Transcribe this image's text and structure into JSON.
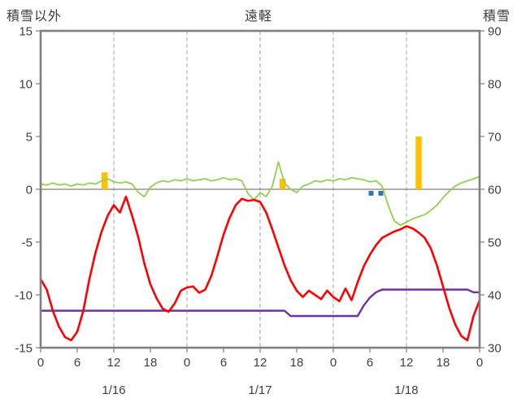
{
  "header": {
    "left_axis_title": "積雪以外",
    "title": "遠軽",
    "right_axis_title": "積雪"
  },
  "chart_data": {
    "type": "line",
    "title": "遠軽",
    "x_hours_span": 72,
    "x_step_hours": 1,
    "x_tick_interval_hours": 6,
    "x_tick_labels": [
      "0",
      "6",
      "12",
      "18",
      "0",
      "6",
      "12",
      "18",
      "0",
      "6",
      "12",
      "18",
      "0"
    ],
    "date_labels": [
      "1/16",
      "1/17",
      "1/18"
    ],
    "left_axis": {
      "title": "積雪以外",
      "min": -15,
      "max": 15,
      "tick": 5,
      "labels": [
        "15",
        "10",
        "5",
        "0",
        "-5",
        "-10",
        "-15"
      ]
    },
    "right_axis": {
      "title": "積雪",
      "min": 30,
      "max": 90,
      "tick": 10,
      "labels": [
        "90",
        "80",
        "70",
        "60",
        "50",
        "40",
        "30"
      ]
    },
    "gridlines": {
      "vertical_dashed_at_hours": [
        12,
        24,
        36,
        48,
        60
      ],
      "horizontal_zero_line": true
    },
    "colors": {
      "border": "#808080",
      "grid": "#A6A6A6",
      "text": "#404040"
    },
    "series": [
      {
        "name": "yellow-bars",
        "kind": "bar",
        "axis": "left",
        "color": "#FFC000",
        "bar_width_hours": 1,
        "bars": [
          {
            "hour": 10.5,
            "from": 0,
            "to": 1.6
          },
          {
            "hour": 39.7,
            "from": 0,
            "to": 1.0
          },
          {
            "hour": 62.0,
            "from": 0,
            "to": 5.0
          }
        ]
      },
      {
        "name": "blue-marks",
        "kind": "bar",
        "axis": "left",
        "color": "#2E75B6",
        "bar_width_hours": 0.8,
        "bars": [
          {
            "hour": 54.2,
            "from": -0.15,
            "to": -0.6
          },
          {
            "hour": 55.8,
            "from": -0.15,
            "to": -0.6
          }
        ]
      },
      {
        "name": "purple-line",
        "kind": "line",
        "axis": "right",
        "color": "#7030A0",
        "width": 2.4,
        "values": [
          37,
          37,
          37,
          37,
          37,
          37,
          37,
          37,
          37,
          37,
          37,
          37,
          37,
          37,
          37,
          37,
          37,
          37,
          37,
          37,
          37,
          37,
          37,
          37,
          37,
          37,
          37,
          37,
          37,
          37,
          37,
          37,
          37,
          37,
          37,
          37,
          37,
          37,
          37,
          37,
          37,
          36,
          36,
          36,
          36,
          36,
          36,
          36,
          36,
          36,
          36,
          36,
          36,
          38,
          39.5,
          40.5,
          41,
          41,
          41,
          41,
          41,
          41,
          41,
          41,
          41,
          41,
          41,
          41,
          41,
          41,
          41,
          40.5,
          40.5
        ]
      },
      {
        "name": "green-line",
        "kind": "line",
        "axis": "left",
        "color": "#92D050",
        "width": 1.8,
        "values": [
          0.5,
          0.4,
          0.6,
          0.4,
          0.5,
          0.3,
          0.5,
          0.4,
          0.6,
          0.5,
          0.8,
          1.0,
          0.7,
          0.6,
          0.7,
          0.5,
          -0.3,
          -0.7,
          0.2,
          0.6,
          0.8,
          0.7,
          0.9,
          0.8,
          1.0,
          0.8,
          0.9,
          1.0,
          0.8,
          0.9,
          1.1,
          0.9,
          1.0,
          0.8,
          -0.4,
          -1.0,
          -0.3,
          -0.7,
          0.3,
          2.6,
          0.6,
          0.0,
          -0.3,
          0.3,
          0.5,
          0.8,
          0.7,
          0.9,
          0.8,
          1.0,
          0.9,
          1.1,
          1.0,
          0.9,
          0.7,
          0.8,
          0.3,
          -1.5,
          -3.0,
          -3.4,
          -3.1,
          -2.8,
          -2.6,
          -2.4,
          -2.0,
          -1.5,
          -0.8,
          -0.2,
          0.3,
          0.6,
          0.8,
          1.0,
          1.2
        ]
      },
      {
        "name": "red-line",
        "kind": "line",
        "axis": "left",
        "color": "#FF0000",
        "width": 2.6,
        "values": [
          -8.5,
          -9.5,
          -11.5,
          -13,
          -14,
          -14.3,
          -13.5,
          -11.5,
          -8.5,
          -6,
          -4,
          -2.5,
          -1.5,
          -2.2,
          -0.7,
          -2.5,
          -4.5,
          -7,
          -9,
          -10.3,
          -11.3,
          -11.6,
          -10.8,
          -9.6,
          -9.3,
          -9.2,
          -9.8,
          -9.5,
          -8.2,
          -6.3,
          -4.3,
          -2.7,
          -1.5,
          -0.9,
          -1.1,
          -1.0,
          -1.2,
          -2.2,
          -3.8,
          -5.5,
          -7.2,
          -8.6,
          -9.6,
          -10.2,
          -9.6,
          -10.0,
          -10.4,
          -9.6,
          -10.2,
          -10.6,
          -9.4,
          -10.5,
          -8.8,
          -7.3,
          -6.2,
          -5.3,
          -4.6,
          -4.3,
          -4.0,
          -3.8,
          -3.5,
          -3.7,
          -4.1,
          -4.6,
          -5.6,
          -7.2,
          -9.2,
          -11.2,
          -12.8,
          -13.9,
          -14.3,
          -12.0,
          -10.5
        ]
      }
    ]
  }
}
